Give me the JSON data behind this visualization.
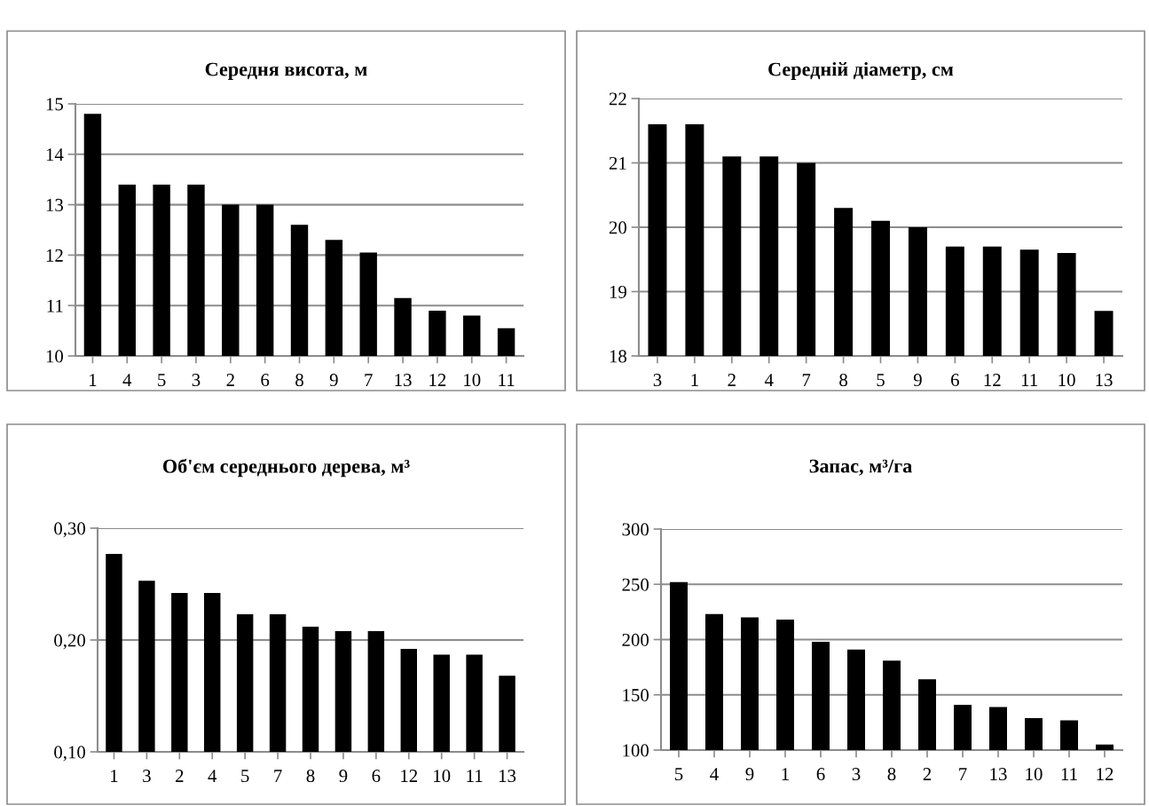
{
  "chart_data": [
    {
      "type": "bar",
      "title": "Середня висота, м",
      "categories": [
        "1",
        "4",
        "5",
        "3",
        "2",
        "6",
        "8",
        "9",
        "7",
        "13",
        "12",
        "10",
        "11"
      ],
      "values": [
        14.8,
        13.4,
        13.4,
        13.4,
        13.0,
        13.0,
        12.6,
        12.3,
        12.05,
        11.15,
        10.9,
        10.8,
        10.55
      ],
      "color": "#000000",
      "ylim": [
        10,
        15
      ],
      "yticks": [
        10,
        11,
        12,
        13,
        14,
        15
      ],
      "grid": "y"
    },
    {
      "type": "bar",
      "title": "Середній діаметр, см",
      "categories": [
        "3",
        "1",
        "2",
        "4",
        "7",
        "8",
        "5",
        "9",
        "6",
        "12",
        "11",
        "10",
        "13"
      ],
      "values": [
        21.6,
        21.6,
        21.1,
        21.1,
        21.0,
        20.3,
        20.1,
        20.0,
        19.7,
        19.7,
        19.65,
        19.6,
        18.7
      ],
      "color": "#000000",
      "ylim": [
        18,
        22
      ],
      "yticks": [
        18,
        19,
        20,
        21,
        22
      ],
      "grid": "y"
    },
    {
      "type": "bar",
      "title": "Об'єм середнього дерева, м³",
      "categories": [
        "1",
        "3",
        "2",
        "4",
        "5",
        "7",
        "8",
        "9",
        "6",
        "12",
        "10",
        "11",
        "13"
      ],
      "values": [
        0.277,
        0.253,
        0.242,
        0.242,
        0.223,
        0.223,
        0.212,
        0.208,
        0.208,
        0.192,
        0.187,
        0.187,
        0.168
      ],
      "color": "#000000",
      "ylim": [
        0.1,
        0.3
      ],
      "yticks": [
        {
          "value": 0.1,
          "label": "0,10"
        },
        {
          "value": 0.2,
          "label": "0,20"
        },
        {
          "value": 0.3,
          "label": "0,30"
        }
      ],
      "grid": "y"
    },
    {
      "type": "bar",
      "title": "Запас, м³/га",
      "categories": [
        "5",
        "4",
        "9",
        "1",
        "6",
        "3",
        "8",
        "2",
        "7",
        "13",
        "10",
        "11",
        "12"
      ],
      "values": [
        252,
        223,
        220,
        218,
        198,
        191,
        181,
        164,
        141,
        139,
        129,
        127,
        105
      ],
      "color": "#000000",
      "ylim": [
        100,
        300
      ],
      "yticks": [
        100,
        150,
        200,
        250,
        300
      ],
      "grid": "y"
    }
  ]
}
